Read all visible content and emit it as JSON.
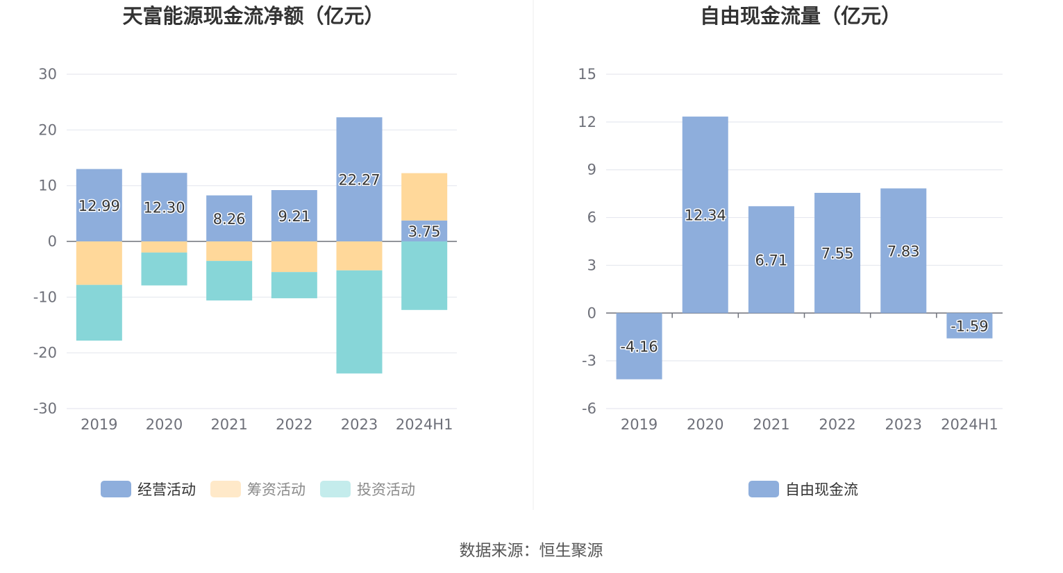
{
  "source_text": "数据来源：恒生聚源",
  "colors": {
    "operating": "#8eaedc",
    "financing": "#ffd89a",
    "investing": "#87d6d8",
    "free_cf": "#8eaedc",
    "legend_financing_muted": "#ffe9c9",
    "legend_investing_muted": "#c4ecec"
  },
  "chart_data": [
    {
      "type": "bar",
      "stacked": true,
      "title": "天富能源现金流净额（亿元）",
      "categories": [
        "2019",
        "2020",
        "2021",
        "2022",
        "2023",
        "2024H1"
      ],
      "ylim": [
        -30,
        30
      ],
      "yticks": [
        30,
        20,
        10,
        0,
        -10,
        -20,
        -30
      ],
      "grid": true,
      "legend_position": "bottom",
      "series": [
        {
          "name": "经营活动",
          "values": [
            12.99,
            12.3,
            8.26,
            9.21,
            22.27,
            3.75
          ],
          "show_labels": true,
          "legend_active": true
        },
        {
          "name": "筹资活动",
          "values": [
            -7.8,
            -2.0,
            -3.5,
            -5.5,
            -5.2,
            8.5
          ],
          "show_labels": false,
          "legend_active": false
        },
        {
          "name": "投资活动",
          "values": [
            -10.0,
            -5.9,
            -7.1,
            -4.7,
            -18.5,
            -12.3
          ],
          "show_labels": false,
          "legend_active": false
        }
      ]
    },
    {
      "type": "bar",
      "title": "自由现金流量（亿元）",
      "categories": [
        "2019",
        "2020",
        "2021",
        "2022",
        "2023",
        "2024H1"
      ],
      "ylim": [
        -6,
        15
      ],
      "yticks": [
        15,
        12,
        9,
        6,
        3,
        0,
        -3,
        -6
      ],
      "grid": true,
      "legend_position": "bottom",
      "series": [
        {
          "name": "自由现金流",
          "values": [
            -4.16,
            12.34,
            6.71,
            7.55,
            7.83,
            -1.59
          ],
          "show_labels": true,
          "legend_active": true
        }
      ]
    }
  ]
}
